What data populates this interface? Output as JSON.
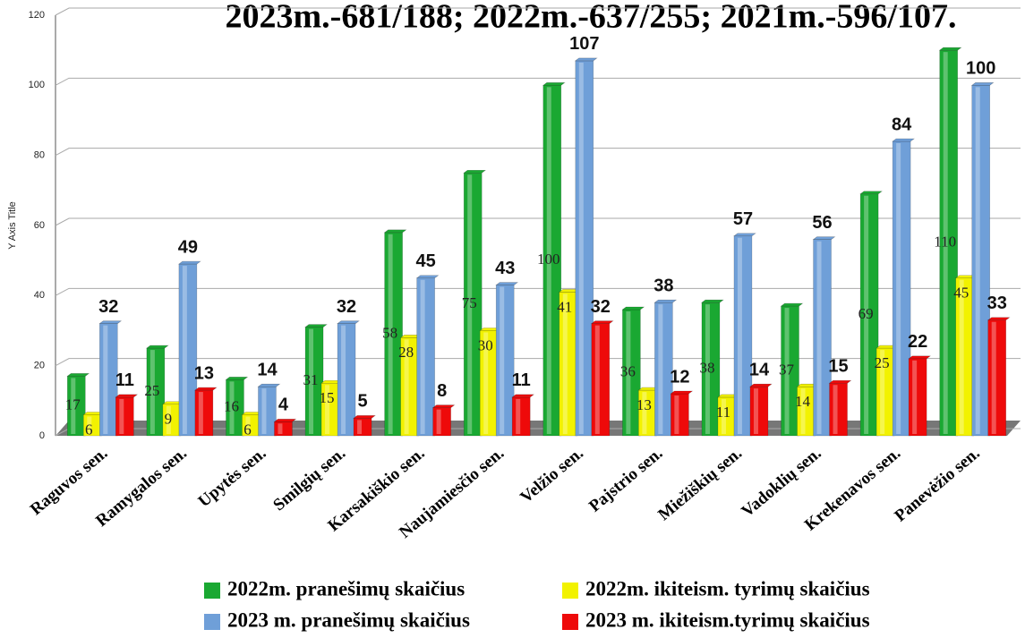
{
  "chart_data": {
    "type": "bar3d",
    "title": "2023m.-681/188; 2022m.-637/255; 2021m.-596/107.",
    "y_axis_title": "Y Axis Title",
    "categories": [
      "Raguvos sen.",
      "Ramygalos sen.",
      "Upytės sen.",
      "Smilgių sen.",
      "Karsakiškio sen.",
      "Naujamiesčio sen.",
      "Velžio sen.",
      "Pajstrio sen.",
      "Miežiškių sen.",
      "Vadoklių sen.",
      "Krekenavos sen.",
      "Panevėžio sen."
    ],
    "series": [
      {
        "name": "2022m. pranešimų skaičius",
        "color": "#1aa832",
        "values": [
          17,
          25,
          16,
          31,
          58,
          75,
          100,
          36,
          38,
          37,
          69,
          110
        ]
      },
      {
        "name": "2022m. ikiteism. tyrimų skaičius",
        "color": "#f2f200",
        "values": [
          6,
          9,
          6,
          15,
          28,
          30,
          41,
          13,
          11,
          14,
          25,
          45
        ]
      },
      {
        "name": "2023 m. pranešimų skaičius",
        "color": "#6f9fd8",
        "values": [
          32,
          49,
          14,
          32,
          45,
          43,
          107,
          38,
          57,
          56,
          84,
          100
        ]
      },
      {
        "name": "2023 m. ikiteism.tyrimų skaičius",
        "color": "#ee0a0a",
        "values": [
          11,
          13,
          4,
          5,
          8,
          11,
          32,
          12,
          14,
          15,
          22,
          33
        ]
      }
    ],
    "ylim": [
      0,
      120
    ],
    "yticks": [
      0,
      20,
      40,
      60,
      80,
      100,
      120
    ],
    "grid": true
  }
}
